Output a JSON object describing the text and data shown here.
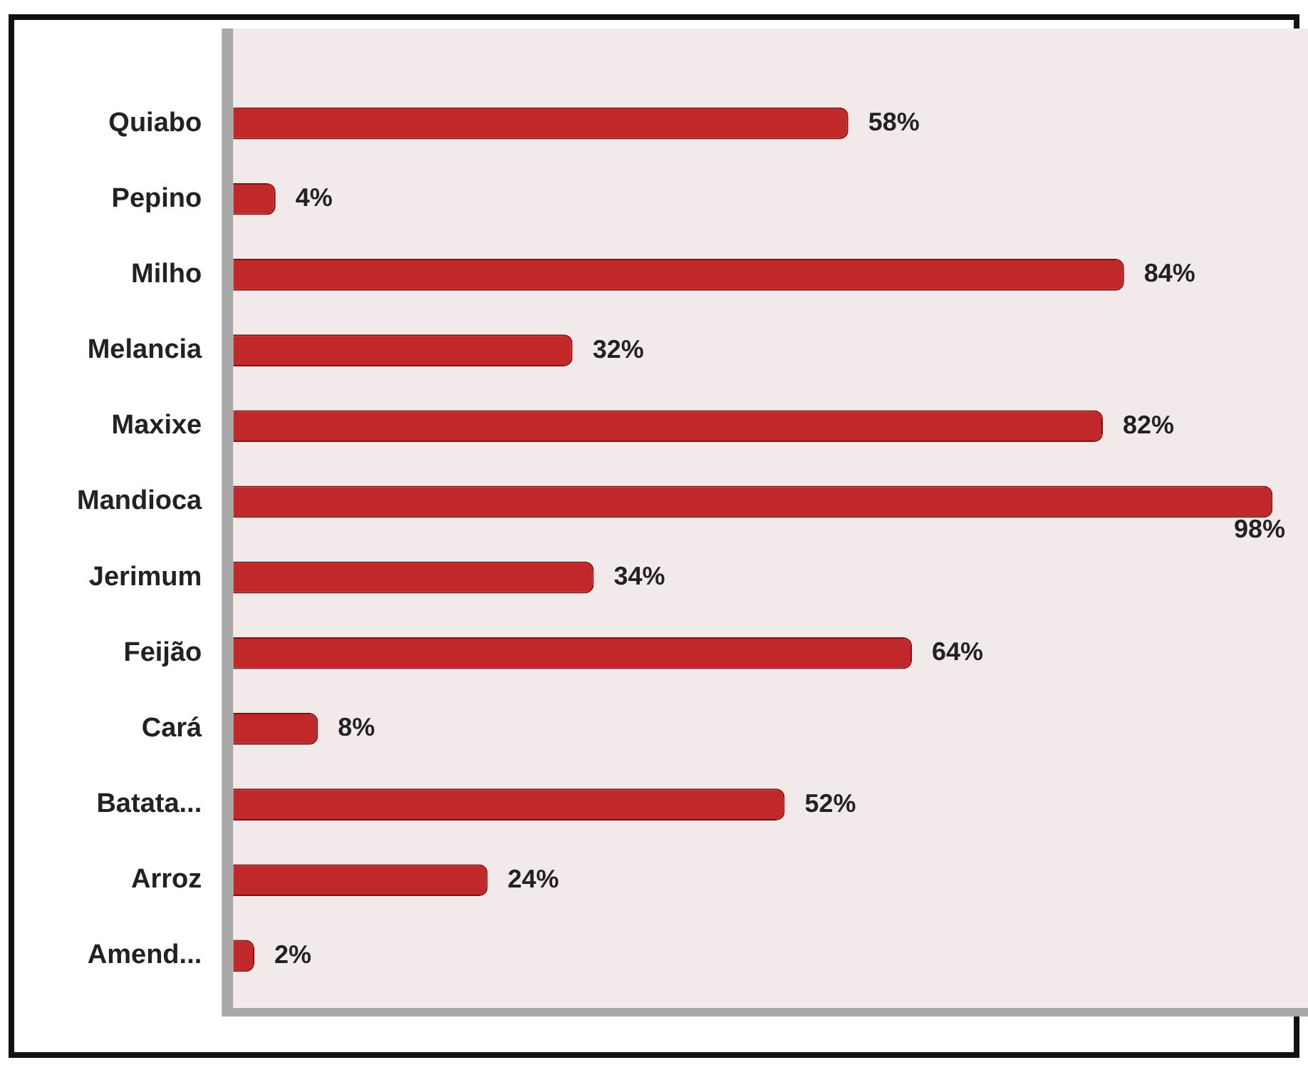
{
  "chart_data": {
    "type": "bar",
    "orientation": "horizontal",
    "categories": [
      "Quiabo",
      "Pepino",
      "Milho",
      "Melancia",
      "Maxixe",
      "Mandioca",
      "Jerimum",
      "Feijão",
      "Cará",
      "Batata...",
      "Arroz",
      "Amend..."
    ],
    "values": [
      58,
      4,
      84,
      32,
      82,
      98,
      34,
      64,
      8,
      52,
      24,
      2
    ],
    "value_labels": [
      "58%",
      "4%",
      "84%",
      "32%",
      "82%",
      "98%",
      "34%",
      "64%",
      "8%",
      "52%",
      "24%",
      "2%"
    ],
    "color": "#c0282a",
    "tick_labels": "y"
  }
}
